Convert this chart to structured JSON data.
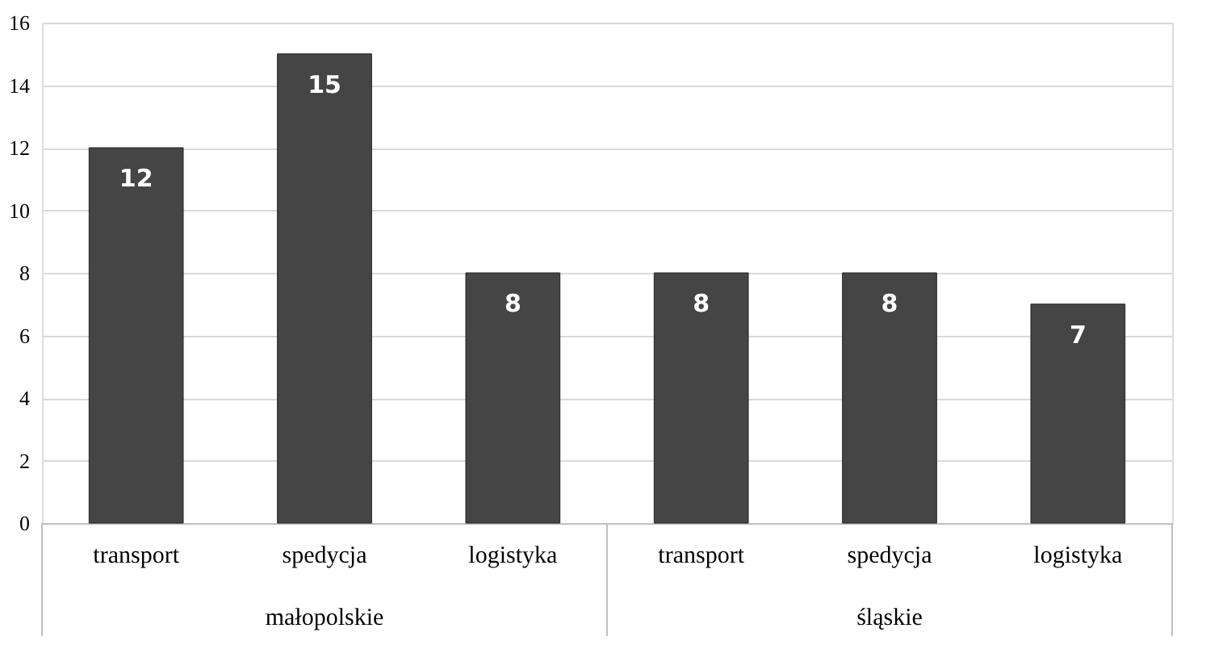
{
  "chart_data": {
    "type": "bar",
    "categories": [
      "transport",
      "spedycja",
      "logistyka",
      "transport",
      "spedycja",
      "logistyka"
    ],
    "values": [
      12,
      15,
      8,
      8,
      8,
      7
    ],
    "color": "#454545",
    "ylim": [
      0,
      16
    ],
    "yticks": [
      0,
      2,
      4,
      6,
      8,
      10,
      12,
      14,
      16
    ],
    "grid": "y",
    "data_labels": true,
    "annotations": [
      "małopolskie",
      "śląskie"
    ]
  }
}
